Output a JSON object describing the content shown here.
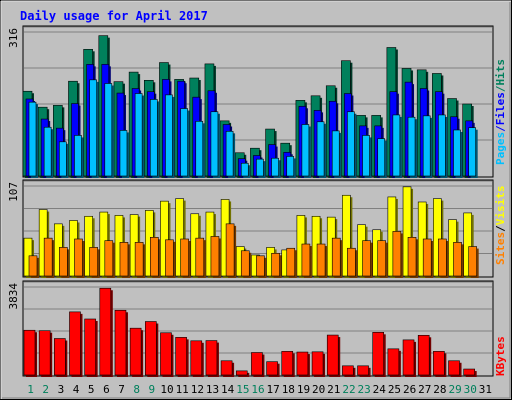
{
  "chart_data": {
    "type": "bar",
    "title": "Daily usage for April 2017",
    "days": [
      "1",
      "2",
      "3",
      "4",
      "5",
      "6",
      "7",
      "8",
      "9",
      "10",
      "11",
      "12",
      "13",
      "14",
      "15",
      "16",
      "17",
      "18",
      "19",
      "20",
      "21",
      "22",
      "23",
      "24",
      "25",
      "26",
      "27",
      "28",
      "29",
      "30",
      "31"
    ],
    "weekend_days": [
      "1",
      "2",
      "8",
      "9",
      "15",
      "16",
      "22",
      "23",
      "29",
      "30"
    ],
    "panels": [
      {
        "name": "hits-files-pages",
        "max_label": "316",
        "ymax": 316,
        "side_labels": [
          "Pages",
          "Files",
          "Hits"
        ],
        "series": [
          {
            "name": "Hits",
            "values": [
              186,
              151,
              155,
              208,
              278,
              308,
              207,
              228,
              210,
              249,
              212,
              215,
              246,
              121,
              51,
              61,
              103,
              72,
              166,
              176,
              198,
              253,
              133,
              133,
              282,
              236,
              233,
              225,
              170,
              158,
              0
            ]
          },
          {
            "name": "Files",
            "values": [
              169,
              125,
              105,
              159,
              245,
              245,
              182,
              192,
              185,
              212,
              208,
              173,
              187,
              113,
              38,
              45,
              69,
              52,
              153,
              144,
              164,
              181,
              110,
              110,
              185,
              206,
              192,
              185,
              130,
              121,
              0
            ]
          },
          {
            "name": "Pages",
            "values": [
              162,
              107,
              75,
              89,
              211,
              203,
              100,
              181,
              168,
              178,
              148,
              120,
              141,
              98,
              28,
              37,
              39,
              43,
              113,
              119,
              99,
              141,
              89,
              82,
              134,
              129,
              132,
              134,
              101,
              106,
              0
            ]
          }
        ],
        "colors": [
          "#00805c",
          "#0000ff",
          "#00c0ff"
        ]
      },
      {
        "name": "visits-sites",
        "max_label": "107",
        "ymax": 107,
        "side_labels": [
          "Sites",
          "/",
          "Visits"
        ],
        "series": [
          {
            "name": "Visits",
            "values": [
              45,
              79,
              62,
              66,
              71,
              76,
              72,
              73,
              78,
              89,
              92,
              74,
              76,
              91,
              35,
              25,
              34,
              31,
              72,
              71,
              70,
              96,
              61,
              55,
              94,
              106,
              88,
              92,
              67,
              75,
              0
            ]
          },
          {
            "name": "Sites",
            "values": [
              24,
              45,
              34,
              44,
              34,
              42,
              40,
              40,
              46,
              43,
              44,
              45,
              47,
              62,
              30,
              24,
              27,
              33,
              38,
              38,
              45,
              33,
              42,
              42,
              53,
              46,
              44,
              44,
              40,
              35,
              0
            ]
          }
        ],
        "colors": [
          "#ffff00",
          "#ff8000"
        ]
      },
      {
        "name": "kbytes",
        "max_label": "3834",
        "ymax": 3834,
        "side_labels": [
          "KBytes"
        ],
        "series": [
          {
            "name": "KBytes",
            "values": [
              1950,
              1930,
              1590,
              2750,
              2440,
              3780,
              2820,
              2040,
              2330,
              1840,
              1640,
              1490,
              1500,
              620,
              180,
              980,
              580,
              1030,
              1000,
              1010,
              1740,
              400,
              400,
              1860,
              1140,
              1530,
              1730,
              1030,
              620,
              260,
              0
            ]
          }
        ],
        "colors": [
          "#ff0000"
        ]
      }
    ]
  }
}
